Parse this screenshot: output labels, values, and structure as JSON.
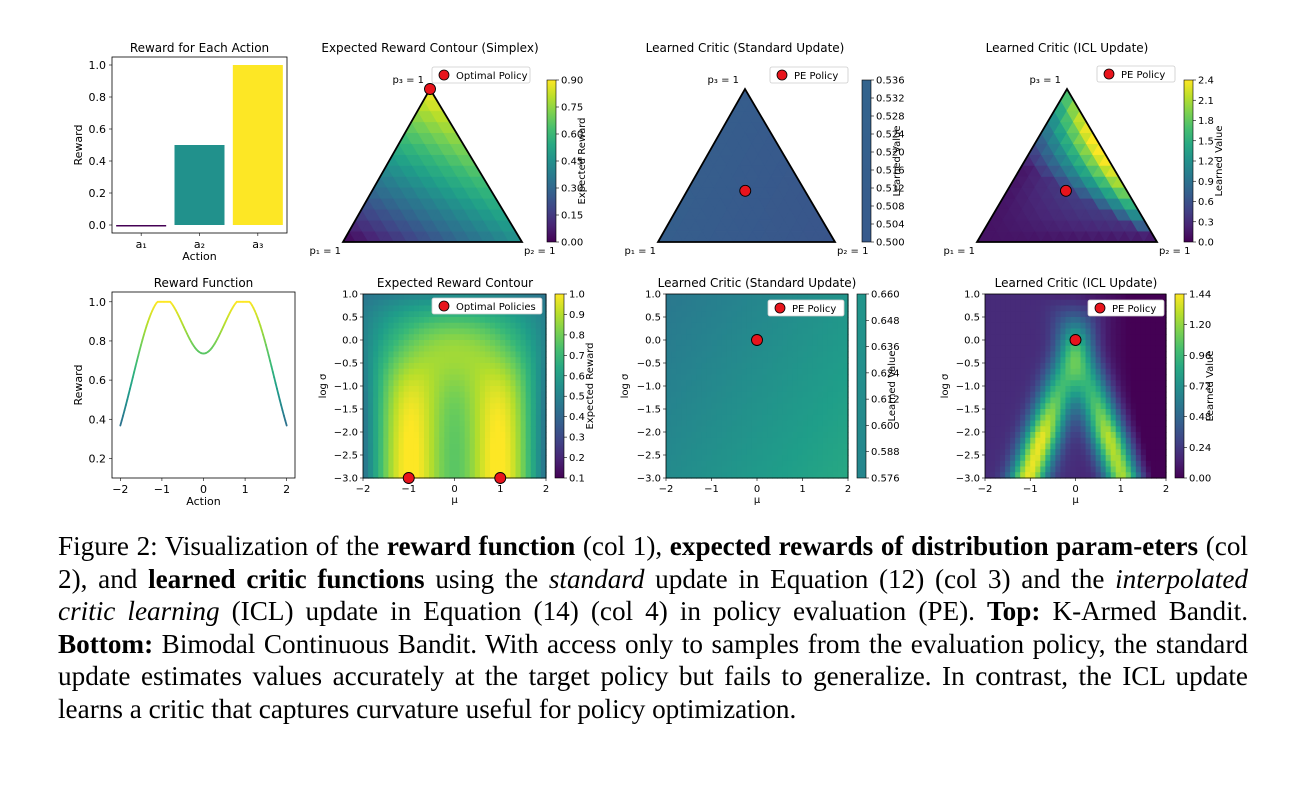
{
  "figure": {
    "rows": [
      {
        "reward_bar": {
          "type": "bar",
          "title": "Reward for Each Action",
          "xlabel": "Action",
          "ylabel": "Reward",
          "categories": [
            "a₁",
            "a₂",
            "a₃"
          ],
          "values": [
            0.0,
            0.5,
            1.0
          ],
          "ylim": [
            -0.05,
            1.05
          ],
          "yticks": [
            0.0,
            0.2,
            0.4,
            0.6,
            0.8,
            1.0
          ],
          "colors": [
            "#440154",
            "#21918c",
            "#fde725"
          ]
        },
        "panels": [
          {
            "title": "Expected Reward Contour (Simplex)",
            "legend": "Optimal Policy",
            "vertex_labels": [
              "p₁ = 1",
              "p₂ = 1",
              "p₃ = 1"
            ],
            "colorbar_label": "Expected Reward",
            "colorbar_ticks": [
              "0.00",
              "0.15",
              "0.30",
              "0.45",
              "0.60",
              "0.75",
              "0.90"
            ],
            "field": "reward",
            "markers": [
              [
                0,
                0,
                1
              ]
            ]
          },
          {
            "title": "Learned Critic (Standard Update)",
            "legend": "PE Policy",
            "vertex_labels": [
              "p₁ = 1",
              "p₂ = 1",
              "p₃ = 1"
            ],
            "colorbar_label": "Learned Value",
            "colorbar_ticks": [
              "0.500",
              "0.504",
              "0.508",
              "0.512",
              "0.516",
              "0.520",
              "0.524",
              "0.528",
              "0.532",
              "0.536"
            ],
            "field": "flat",
            "markers": [
              [
                0.333,
                0.333,
                0.333
              ]
            ]
          },
          {
            "title": "Learned Critic (ICL Update)",
            "legend": "PE Policy",
            "vertex_labels": [
              "p₁ = 1",
              "p₂ = 1",
              "p₃ = 1"
            ],
            "colorbar_label": "Learned Value",
            "colorbar_ticks": [
              "0.0",
              "0.3",
              "0.6",
              "0.9",
              "1.2",
              "1.5",
              "1.8",
              "2.1",
              "2.4"
            ],
            "field": "icl",
            "markers": [
              [
                0.333,
                0.333,
                0.333
              ]
            ]
          }
        ]
      },
      {
        "reward_line": {
          "type": "line",
          "title": "Reward Function",
          "xlabel": "Action",
          "ylabel": "Reward",
          "xticks": [
            -2,
            -1,
            0,
            1,
            2
          ],
          "yticks": [
            0.2,
            0.4,
            0.6,
            0.8,
            1.0
          ],
          "xlim": [
            -2.2,
            2.2
          ],
          "ylim": [
            0.1,
            1.05
          ],
          "formula": "exp(-(x-1)^2) + exp(-(x+1)^2) capped at 1"
        },
        "panels": [
          {
            "title": "Expected Reward Contour",
            "legend": "Optimal Policies",
            "xlabel": "μ",
            "ylabel": "log σ",
            "xticks": [
              "−2",
              "−1",
              "0",
              "1",
              "2"
            ],
            "yticks": [
              "1.0",
              "0.5",
              "0.0",
              "−0.5",
              "−1.0",
              "−1.5",
              "−2.0",
              "−2.5",
              "−3.0"
            ],
            "colorbar_label": "Expected Reward",
            "colorbar_ticks": [
              "0.1",
              "0.2",
              "0.3",
              "0.4",
              "0.5",
              "0.6",
              "0.7",
              "0.8",
              "0.9",
              "1.0"
            ],
            "field": "reward",
            "markers": [
              [
                -1,
                -3
              ],
              [
                1,
                -3
              ]
            ]
          },
          {
            "title": "Learned Critic (Standard Update)",
            "legend": "PE Policy",
            "xlabel": "μ",
            "ylabel": "log σ",
            "xticks": [
              "−2",
              "−1",
              "0",
              "1",
              "2"
            ],
            "yticks": [
              "1.0",
              "0.5",
              "0.0",
              "−0.5",
              "−1.0",
              "−1.5",
              "−2.0",
              "−2.5",
              "−3.0"
            ],
            "colorbar_label": "Learned Value",
            "colorbar_ticks": [
              "0.576",
              "0.588",
              "0.600",
              "0.612",
              "0.624",
              "0.636",
              "0.648",
              "0.660"
            ],
            "field": "flat",
            "markers": [
              [
                0,
                0
              ]
            ]
          },
          {
            "title": "Learned Critic (ICL Update)",
            "legend": "PE Policy",
            "xlabel": "μ",
            "ylabel": "log σ",
            "xticks": [
              "−2",
              "−1",
              "0",
              "1",
              "2"
            ],
            "yticks": [
              "1.0",
              "0.5",
              "0.0",
              "−0.5",
              "−1.0",
              "−1.5",
              "−2.0",
              "−2.5",
              "−3.0"
            ],
            "colorbar_label": "Learned Value",
            "colorbar_ticks": [
              "0.00",
              "0.24",
              "0.48",
              "0.72",
              "0.96",
              "1.20",
              "1.44"
            ],
            "field": "icl",
            "markers": [
              [
                0,
                0
              ]
            ]
          }
        ]
      }
    ],
    "colors": {
      "marker": "#e8141c",
      "viridis_low": "#440154",
      "viridis_mid": "#21918c",
      "viridis_high": "#fde725"
    }
  },
  "caption": {
    "p1": "Figure 2: Visualization of the ",
    "b1": "reward function",
    "p2": " (col 1), ",
    "b2": "expected rewards of distribution param-eters",
    "p3": " (col 2), and ",
    "b3": "learned critic functions",
    "p4": " using the ",
    "i1": "standard",
    "p5": " update in Equation (12) (col 3) and the ",
    "i2": "interpolated critic learning",
    "p6": " (ICL) update in Equation (14) (col 4) in policy evaluation (PE). ",
    "b4": "Top:",
    "p7": " K-Armed Bandit. ",
    "b5": "Bottom:",
    "p8": " Bimodal Continuous Bandit. With access only to samples from the evaluation policy, the standard update estimates values accurately at the target policy but fails to generalize. In contrast, the ICL update learns a critic that captures curvature useful for policy optimization."
  }
}
